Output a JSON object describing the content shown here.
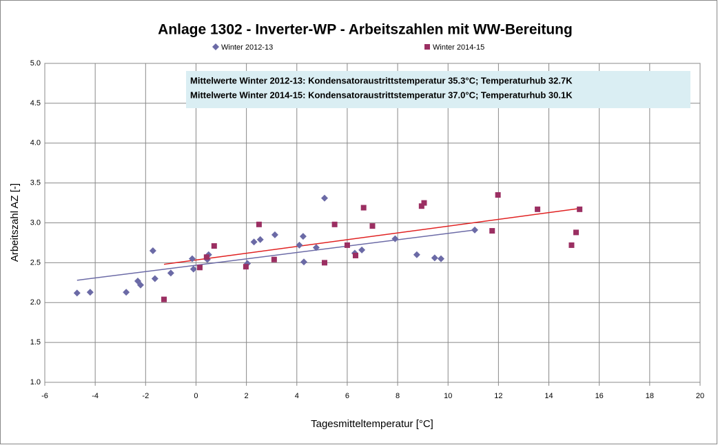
{
  "chart_data": {
    "type": "scatter",
    "title": "Anlage 1302 - Inverter-WP - Arbeitszahlen mit WW-Bereitung",
    "xlabel": "Tagesmitteltemperatur [°C]",
    "ylabel": "Arbeitszahl AZ [-]",
    "annotations": [
      "Mittelwerte Winter 2012-13: Kondensatoraustrittstemperatur 35.3°C; Temperaturhub 32.7K",
      "Mittelwerte Winter 2014-15: Kondensatoraustrittstemperatur 37.0°C; Temperaturhub 30.1K"
    ],
    "xlim": [
      -6,
      20
    ],
    "xticks": [
      -6,
      -4,
      -2,
      0,
      2,
      4,
      6,
      8,
      10,
      12,
      14,
      16,
      18,
      20
    ],
    "ylim": [
      1,
      5
    ],
    "yticks": [
      {
        "value": 1,
        "label": "1.0"
      },
      {
        "value": 1.5,
        "label": "1.5"
      },
      {
        "value": 2,
        "label": "2.0"
      },
      {
        "value": 2.5,
        "label": "2.5"
      },
      {
        "value": 3,
        "label": "3.0"
      },
      {
        "value": 3.5,
        "label": "3.5"
      },
      {
        "value": 4,
        "label": "4.0"
      },
      {
        "value": 4.5,
        "label": "4.5"
      },
      {
        "value": 5,
        "label": "5.0"
      }
    ],
    "grid": true,
    "legend": "top",
    "series": [
      {
        "name": "Winter 2012-13",
        "color": "#6b6aa6",
        "marker": "diamond",
        "x": [
          -4.72,
          -4.2,
          -2.77,
          -2.31,
          -2.2,
          -1.71,
          -1.63,
          -1.0,
          -0.15,
          -0.1,
          0.45,
          0.5,
          2.04,
          2.3,
          2.55,
          3.13,
          4.1,
          4.25,
          4.28,
          4.77,
          5.1,
          6.3,
          6.58,
          7.9,
          8.76,
          9.47,
          9.72,
          11.06
        ],
        "values": [
          2.12,
          2.13,
          2.13,
          2.27,
          2.22,
          2.65,
          2.3,
          2.37,
          2.55,
          2.42,
          2.54,
          2.6,
          2.49,
          2.76,
          2.79,
          2.85,
          2.72,
          2.83,
          2.51,
          2.69,
          3.31,
          2.62,
          2.66,
          2.8,
          2.6,
          2.56,
          2.55,
          2.91
        ],
        "trend_x": [
          -4.72,
          11.06
        ],
        "trend_values": [
          2.28,
          2.91
        ],
        "trend_color": "#6b6aa6"
      },
      {
        "name": "Winter 2014-15",
        "color": "#9b2f62",
        "marker": "square",
        "x": [
          -1.27,
          0.15,
          0.42,
          0.72,
          1.98,
          2.5,
          3.1,
          5.1,
          5.5,
          6.0,
          6.33,
          6.65,
          7.0,
          8.95,
          9.05,
          11.75,
          11.98,
          13.55,
          14.9,
          15.08,
          15.22
        ],
        "values": [
          2.04,
          2.44,
          2.57,
          2.71,
          2.45,
          2.98,
          2.54,
          2.5,
          2.98,
          2.72,
          2.59,
          3.19,
          2.96,
          3.21,
          3.25,
          2.9,
          3.35,
          3.17,
          2.72,
          2.88,
          3.17
        ],
        "trend_x": [
          -1.27,
          15.22
        ],
        "trend_values": [
          2.48,
          3.18
        ],
        "trend_color": "#e02020"
      }
    ]
  }
}
